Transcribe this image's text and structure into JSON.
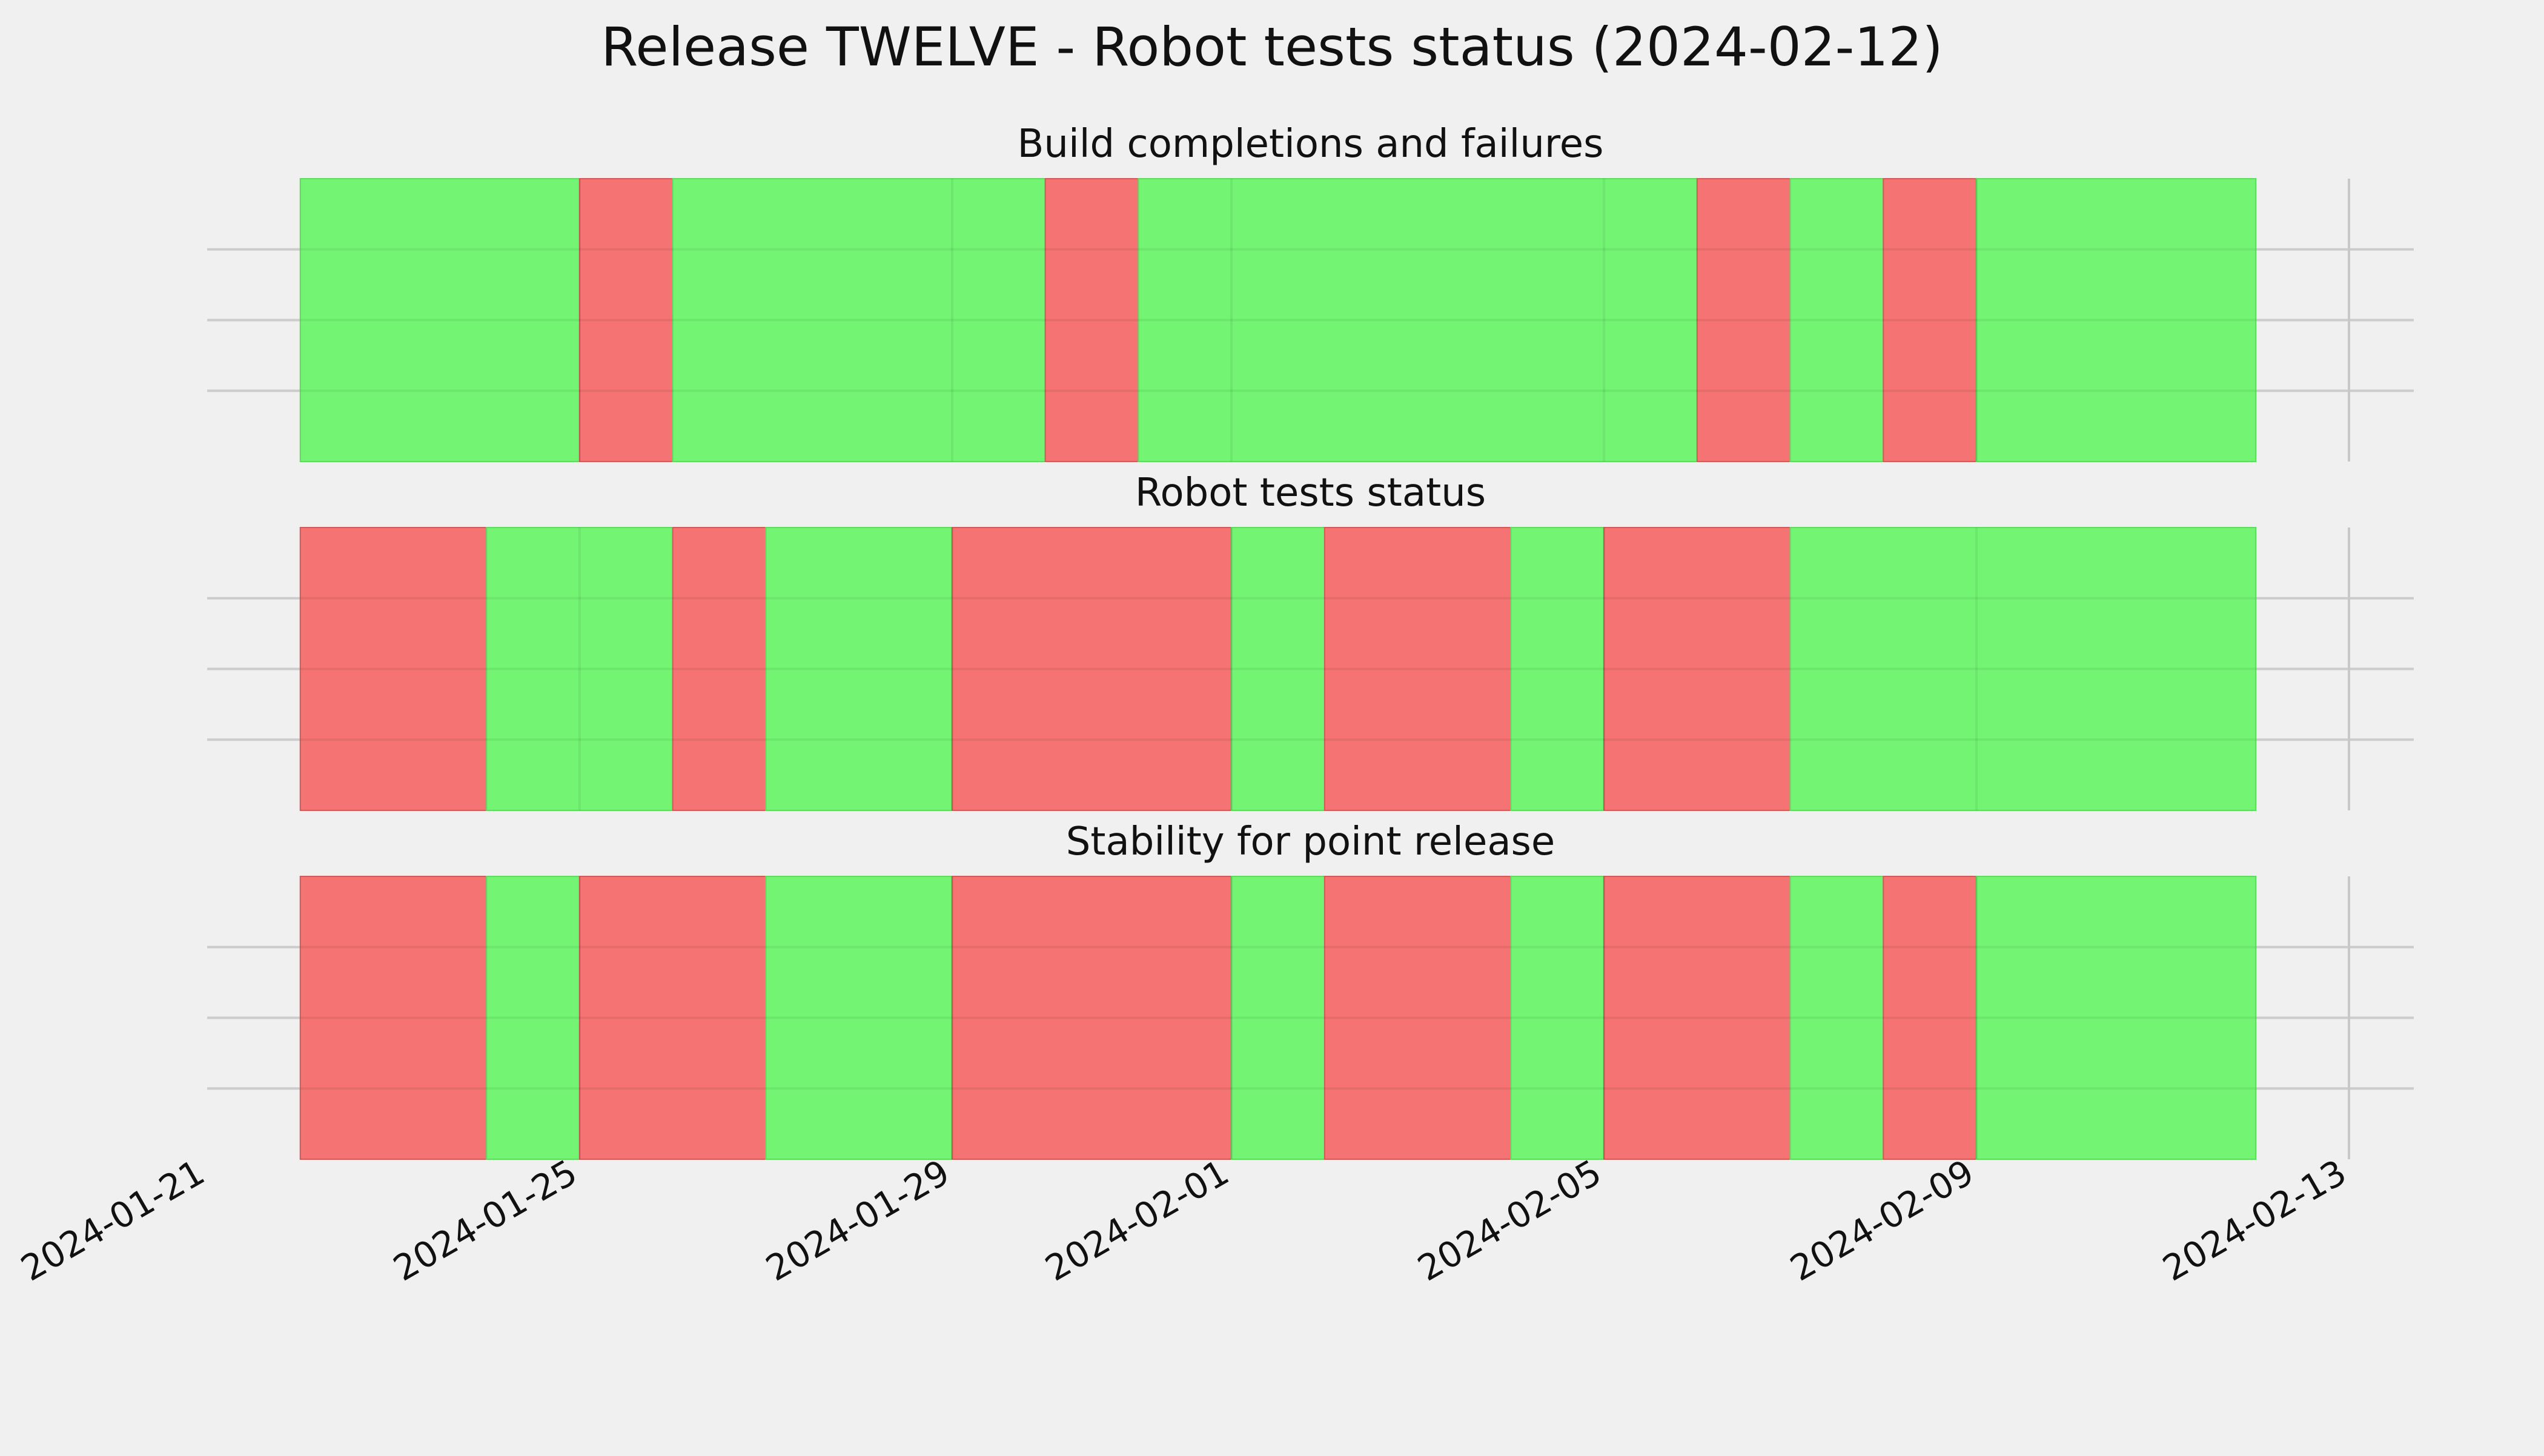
{
  "figure": {
    "title": "Release TWELVE - Robot tests status (2024-02-12)",
    "background": "#f0f0f0"
  },
  "colors": {
    "pass": "#73f573",
    "fail": "#f57373",
    "grid": "#cccccc",
    "axis_line": "#c8c8c8"
  },
  "chart_data": {
    "type": "timeline",
    "x_axis": {
      "kind": "date",
      "range": [
        "2024-01-21",
        "2024-02-13"
      ],
      "tick_labels": [
        "2024-01-21",
        "2024-01-25",
        "2024-01-29",
        "2024-02-01",
        "2024-02-05",
        "2024-02-09",
        "2024-02-13"
      ],
      "tick_dates": [
        "2024-01-21",
        "2024-01-25",
        "2024-01-29",
        "2024-02-01",
        "2024-02-05",
        "2024-02-09",
        "2024-02-13"
      ]
    },
    "data_range": [
      "2024-01-22",
      "2024-02-12"
    ],
    "grid": true,
    "panels": [
      {
        "title": "Build completions and failures",
        "segments": [
          {
            "start": "2024-01-22",
            "end": "2024-01-25",
            "status": "pass"
          },
          {
            "start": "2024-01-25",
            "end": "2024-01-26",
            "status": "fail"
          },
          {
            "start": "2024-01-26",
            "end": "2024-01-30",
            "status": "pass"
          },
          {
            "start": "2024-01-30",
            "end": "2024-01-31",
            "status": "fail"
          },
          {
            "start": "2024-01-31",
            "end": "2024-02-06",
            "status": "pass"
          },
          {
            "start": "2024-02-06",
            "end": "2024-02-07",
            "status": "fail"
          },
          {
            "start": "2024-02-07",
            "end": "2024-02-08",
            "status": "pass"
          },
          {
            "start": "2024-02-08",
            "end": "2024-02-09",
            "status": "fail"
          },
          {
            "start": "2024-02-09",
            "end": "2024-02-12",
            "status": "pass"
          }
        ]
      },
      {
        "title": "Robot tests status",
        "segments": [
          {
            "start": "2024-01-22",
            "end": "2024-01-24",
            "status": "fail"
          },
          {
            "start": "2024-01-24",
            "end": "2024-01-26",
            "status": "pass"
          },
          {
            "start": "2024-01-26",
            "end": "2024-01-27",
            "status": "fail"
          },
          {
            "start": "2024-01-27",
            "end": "2024-01-29",
            "status": "pass"
          },
          {
            "start": "2024-01-29",
            "end": "2024-02-01",
            "status": "fail"
          },
          {
            "start": "2024-02-01",
            "end": "2024-02-02",
            "status": "pass"
          },
          {
            "start": "2024-02-02",
            "end": "2024-02-04",
            "status": "fail"
          },
          {
            "start": "2024-02-04",
            "end": "2024-02-05",
            "status": "pass"
          },
          {
            "start": "2024-02-05",
            "end": "2024-02-07",
            "status": "fail"
          },
          {
            "start": "2024-02-07",
            "end": "2024-02-12",
            "status": "pass"
          }
        ]
      },
      {
        "title": "Stability for point release",
        "segments": [
          {
            "start": "2024-01-22",
            "end": "2024-01-24",
            "status": "fail"
          },
          {
            "start": "2024-01-24",
            "end": "2024-01-25",
            "status": "pass"
          },
          {
            "start": "2024-01-25",
            "end": "2024-01-27",
            "status": "fail"
          },
          {
            "start": "2024-01-27",
            "end": "2024-01-29",
            "status": "pass"
          },
          {
            "start": "2024-01-29",
            "end": "2024-02-01",
            "status": "fail"
          },
          {
            "start": "2024-02-01",
            "end": "2024-02-02",
            "status": "pass"
          },
          {
            "start": "2024-02-02",
            "end": "2024-02-04",
            "status": "fail"
          },
          {
            "start": "2024-02-04",
            "end": "2024-02-05",
            "status": "pass"
          },
          {
            "start": "2024-02-05",
            "end": "2024-02-07",
            "status": "fail"
          },
          {
            "start": "2024-02-07",
            "end": "2024-02-08",
            "status": "pass"
          },
          {
            "start": "2024-02-08",
            "end": "2024-02-09",
            "status": "fail"
          },
          {
            "start": "2024-02-09",
            "end": "2024-02-12",
            "status": "pass"
          }
        ]
      }
    ]
  }
}
